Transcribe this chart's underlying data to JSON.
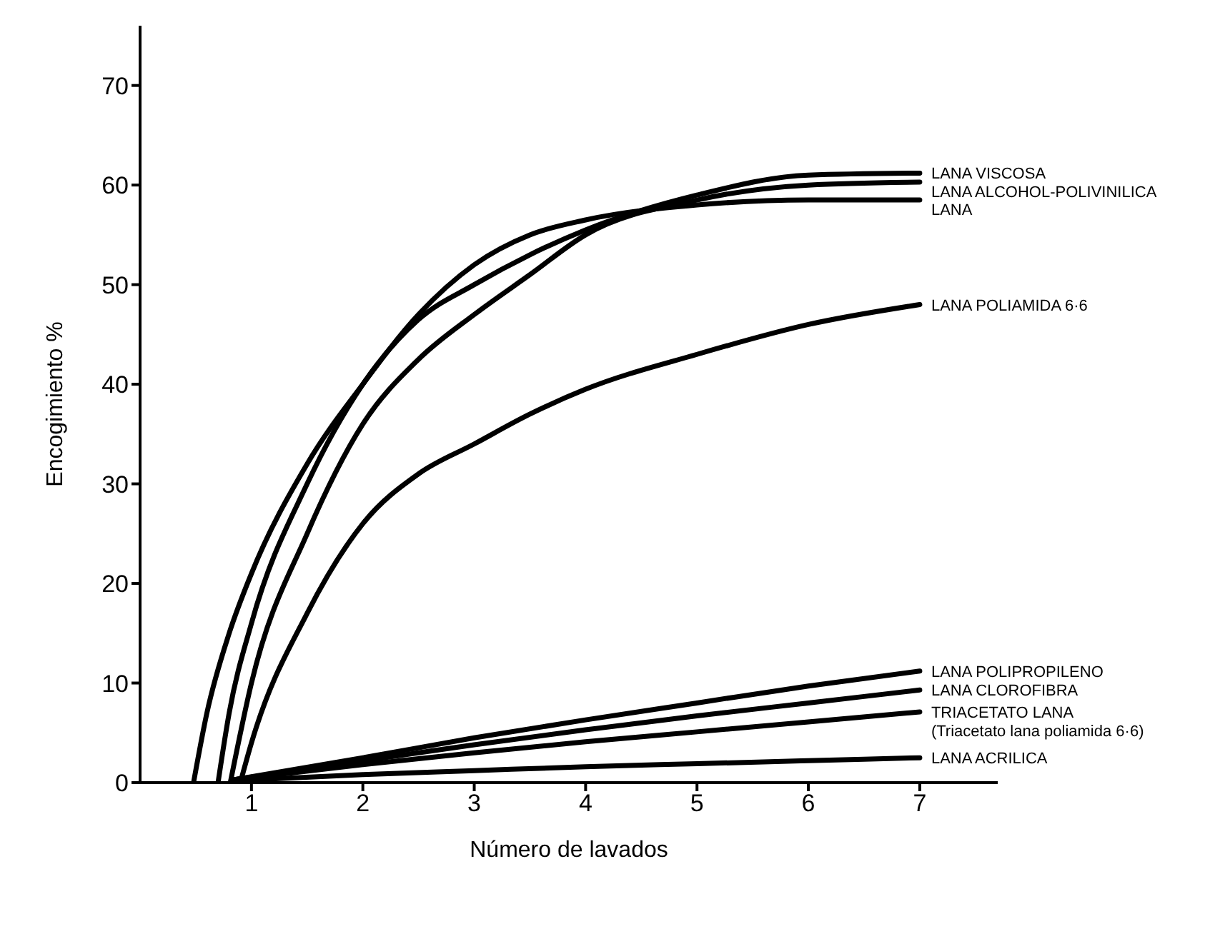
{
  "chart_data": {
    "type": "line",
    "xlabel": "Número de lavados",
    "ylabel": "Encogimiento %",
    "xlim": [
      0,
      7.7
    ],
    "xticks": [
      1,
      2,
      3,
      4,
      5,
      6,
      7
    ],
    "ylim": [
      0,
      76
    ],
    "yticks": [
      0,
      10,
      20,
      30,
      40,
      50,
      60,
      70
    ],
    "grid": false,
    "legend": false,
    "marker": "none",
    "line_style": "solid",
    "series": [
      {
        "name": "LANA VISCOSA",
        "color": "#000000",
        "x": [
          0.7,
          0.8,
          1,
          1.5,
          2,
          2.5,
          3,
          3.5,
          4,
          5,
          6,
          7
        ],
        "values": [
          0,
          7,
          16,
          30,
          40,
          46.5,
          50,
          53,
          55.5,
          59,
          61,
          61.2
        ]
      },
      {
        "name": "LANA ALCOHOL-POLIVINILICA",
        "color": "#000000",
        "x": [
          0.81,
          1,
          1.5,
          2,
          2.5,
          3,
          3.5,
          4,
          5,
          6,
          7
        ],
        "values": [
          0,
          10,
          25,
          36,
          42.5,
          47,
          51,
          55,
          58.5,
          60,
          60.3
        ]
      },
      {
        "name": "LANA",
        "color": "#000000",
        "x": [
          0.48,
          0.6,
          0.8,
          1,
          1.5,
          2,
          2.5,
          3,
          3.5,
          4,
          5,
          6,
          7
        ],
        "values": [
          0,
          7,
          15,
          21,
          32,
          40,
          47,
          52,
          55,
          56.5,
          58,
          58.5,
          58.5
        ]
      },
      {
        "name": "LANA POLIAMIDA 6·6",
        "color": "#000000",
        "x": [
          0.9,
          1,
          1.5,
          2,
          2.5,
          3,
          3.5,
          4,
          5,
          6,
          7
        ],
        "values": [
          0,
          4,
          17,
          26,
          31,
          34,
          37,
          39.5,
          43,
          46,
          48
        ]
      },
      {
        "name": "LANA POLIPROPILENO",
        "color": "#000000",
        "x": [
          0.85,
          2,
          3,
          4,
          5,
          6,
          7
        ],
        "values": [
          0.3,
          2.5,
          4.5,
          6.3,
          8,
          9.7,
          11.2
        ]
      },
      {
        "name": "LANA CLOROFIBRA",
        "color": "#000000",
        "x": [
          0.85,
          2,
          3,
          4,
          5,
          6,
          7
        ],
        "values": [
          0.3,
          2.2,
          3.8,
          5.3,
          6.7,
          8,
          9.3
        ]
      },
      {
        "name": "TRIACETATO LANA\n(Triacetato lana poliamida 6·6)",
        "color": "#000000",
        "x": [
          0.85,
          2,
          3,
          4,
          5,
          6,
          7
        ],
        "values": [
          0.3,
          1.8,
          3,
          4.1,
          5.1,
          6.1,
          7.1
        ]
      },
      {
        "name": "LANA ACRILICA",
        "color": "#000000",
        "x": [
          0.85,
          2,
          3,
          4,
          5,
          6,
          7
        ],
        "values": [
          0.2,
          0.8,
          1.2,
          1.6,
          1.9,
          2.2,
          2.5
        ]
      }
    ]
  }
}
